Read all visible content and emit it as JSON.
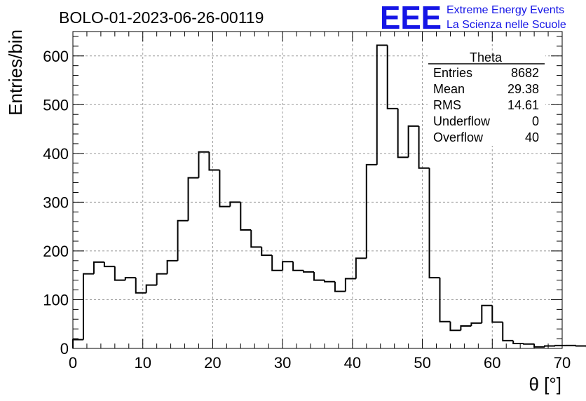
{
  "header": {
    "run_title": "BOLO-01-2023-06-26-00119",
    "logo_text": "EEE",
    "logo_line1": "Extreme Energy Events",
    "logo_line2": "La Scienza nelle Scuole",
    "logo_color": "#1515e6"
  },
  "stats_box": {
    "title": "Theta",
    "rows": [
      {
        "label": "Entries",
        "value": "8682"
      },
      {
        "label": "Mean",
        "value": "29.38"
      },
      {
        "label": "RMS",
        "value": "14.61"
      },
      {
        "label": "Underflow",
        "value": "0"
      },
      {
        "label": "Overflow",
        "value": "40"
      }
    ]
  },
  "chart_data": {
    "type": "bar",
    "style": "step-histogram",
    "xlabel": "θ [°]",
    "ylabel": "Entries/bin",
    "xlim": [
      0,
      70
    ],
    "ylim": [
      0,
      650
    ],
    "bin_width": 1.5,
    "bin_low_edge": 0,
    "x_ticks": [
      0,
      10,
      20,
      30,
      40,
      50,
      60,
      70
    ],
    "y_ticks": [
      0,
      100,
      200,
      300,
      400,
      500,
      600
    ],
    "grid": true,
    "line_color": "#000000",
    "values": [
      18,
      153,
      177,
      168,
      140,
      145,
      114,
      130,
      153,
      180,
      262,
      350,
      403,
      366,
      291,
      300,
      243,
      208,
      191,
      160,
      178,
      160,
      157,
      140,
      137,
      117,
      143,
      185,
      377,
      622,
      492,
      392,
      456,
      370,
      145,
      55,
      37,
      46,
      52,
      88,
      54,
      16,
      10,
      9,
      3,
      5,
      6,
      6,
      5,
      3
    ]
  }
}
